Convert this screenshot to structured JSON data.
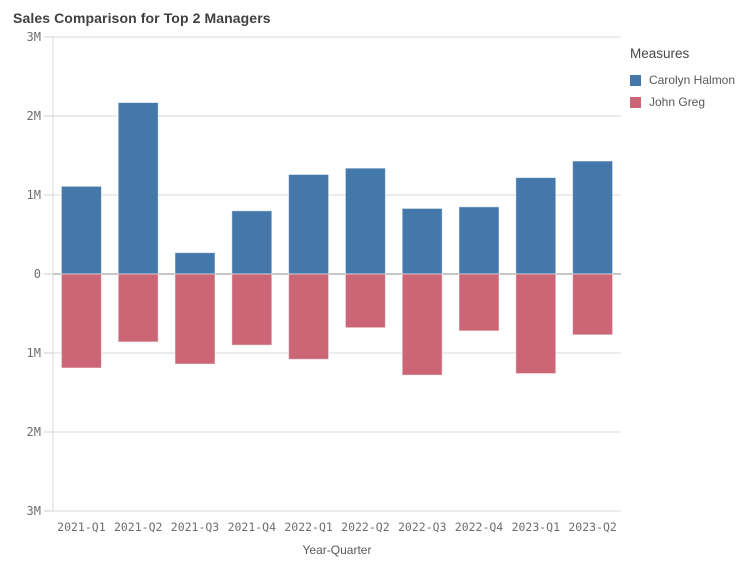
{
  "title": "Sales Comparison for Top 2 Managers",
  "legend": {
    "title": "Measures",
    "items": [
      {
        "label": "Carolyn Halmon",
        "color": "#4477aa"
      },
      {
        "label": "John Greg",
        "color": "#cc6677"
      }
    ]
  },
  "chart_data": {
    "type": "bar",
    "orientation": "vertical",
    "diverging": true,
    "title": "Sales Comparison for Top 2 Managers",
    "xlabel": "Year-Quarter",
    "ylabel": "",
    "value_unit": "millions",
    "ylim": [
      -3,
      3
    ],
    "yticks": [
      3,
      2,
      1,
      0,
      -1,
      -2,
      -3
    ],
    "ytick_labels": [
      "3M",
      "2M",
      "1M",
      "0",
      "1M",
      "2M",
      "3M"
    ],
    "grid": true,
    "legend_position": "right",
    "categories": [
      "2021-Q1",
      "2021-Q2",
      "2021-Q3",
      "2021-Q4",
      "2022-Q1",
      "2022-Q2",
      "2022-Q3",
      "2022-Q4",
      "2023-Q1",
      "2023-Q2"
    ],
    "series": [
      {
        "name": "Carolyn Halmon",
        "color": "#4477aa",
        "values": [
          1.11,
          2.17,
          0.27,
          0.8,
          1.26,
          1.34,
          0.83,
          0.85,
          1.22,
          1.43
        ]
      },
      {
        "name": "John Greg",
        "color": "#cc6677",
        "values": [
          -1.19,
          -0.86,
          -1.14,
          -0.9,
          -1.08,
          -0.68,
          -1.28,
          -0.72,
          -1.26,
          -0.77
        ]
      }
    ]
  }
}
